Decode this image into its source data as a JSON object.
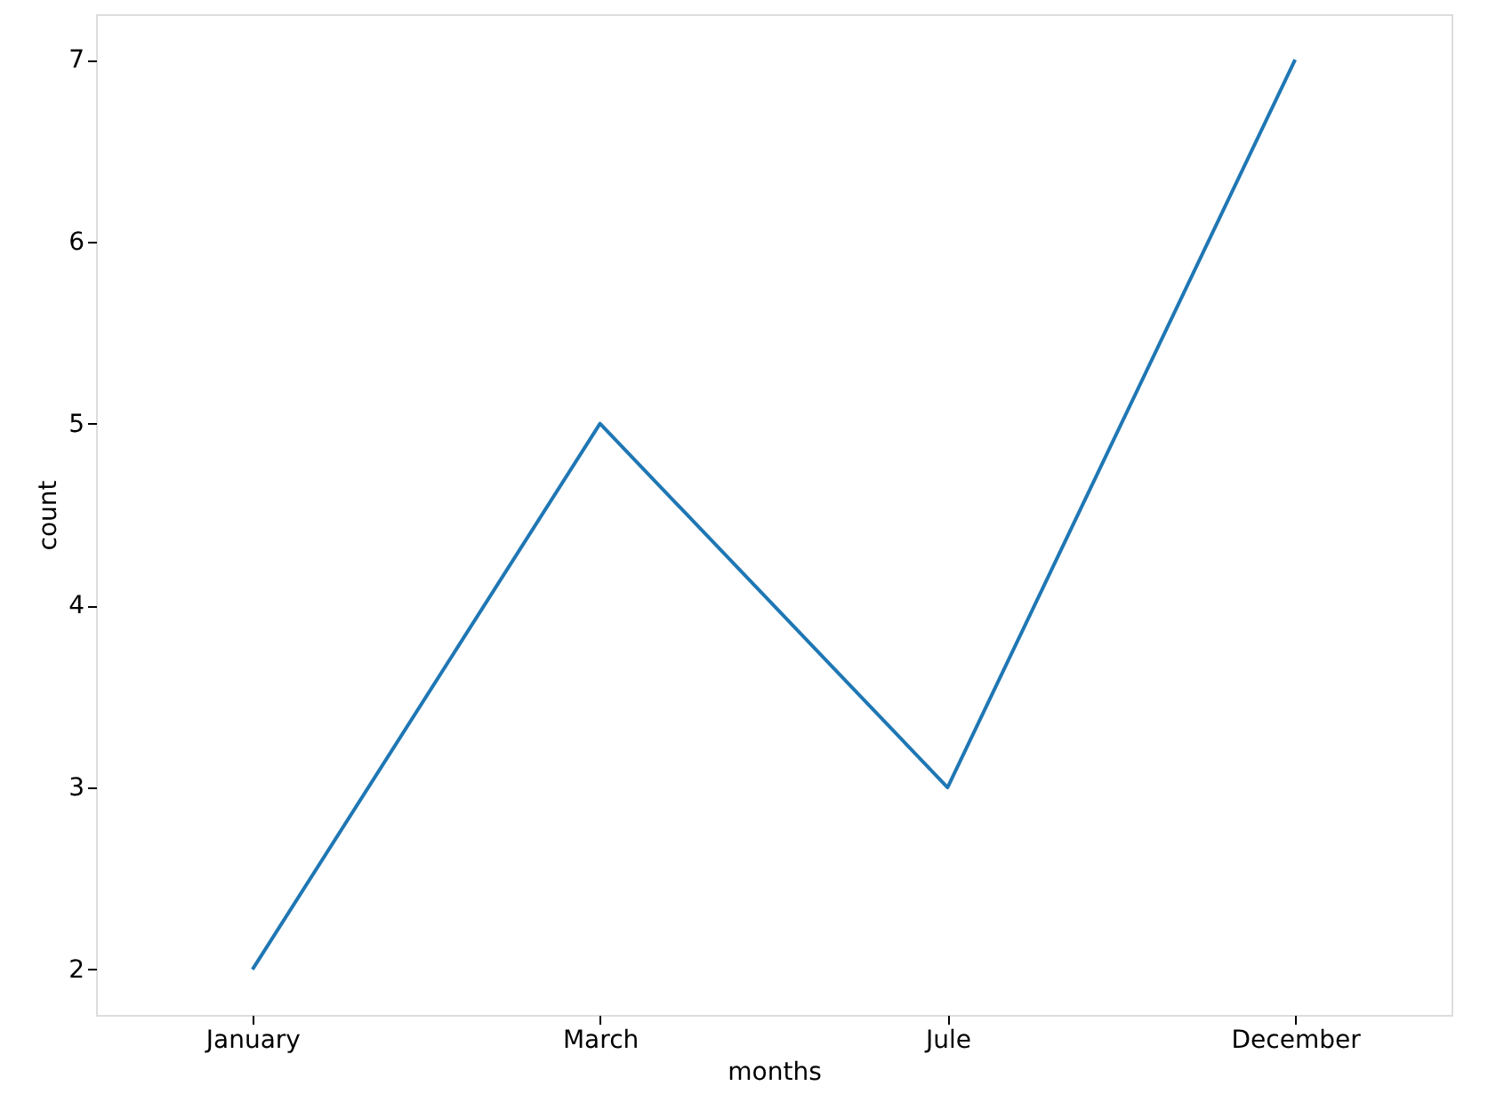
{
  "chart_data": {
    "type": "line",
    "xlabel": "months",
    "ylabel": "count",
    "categories": [
      "January",
      "March",
      "Jule",
      "December"
    ],
    "series": [
      {
        "color": "#1f77b4",
        "values": [
          2,
          5,
          3,
          7
        ]
      }
    ],
    "ylim": [
      1.75,
      7.25
    ],
    "yticks": [
      2,
      3,
      4,
      5,
      6,
      7
    ],
    "grid": false,
    "legend": false,
    "marker": "none",
    "line_style": "solid"
  }
}
